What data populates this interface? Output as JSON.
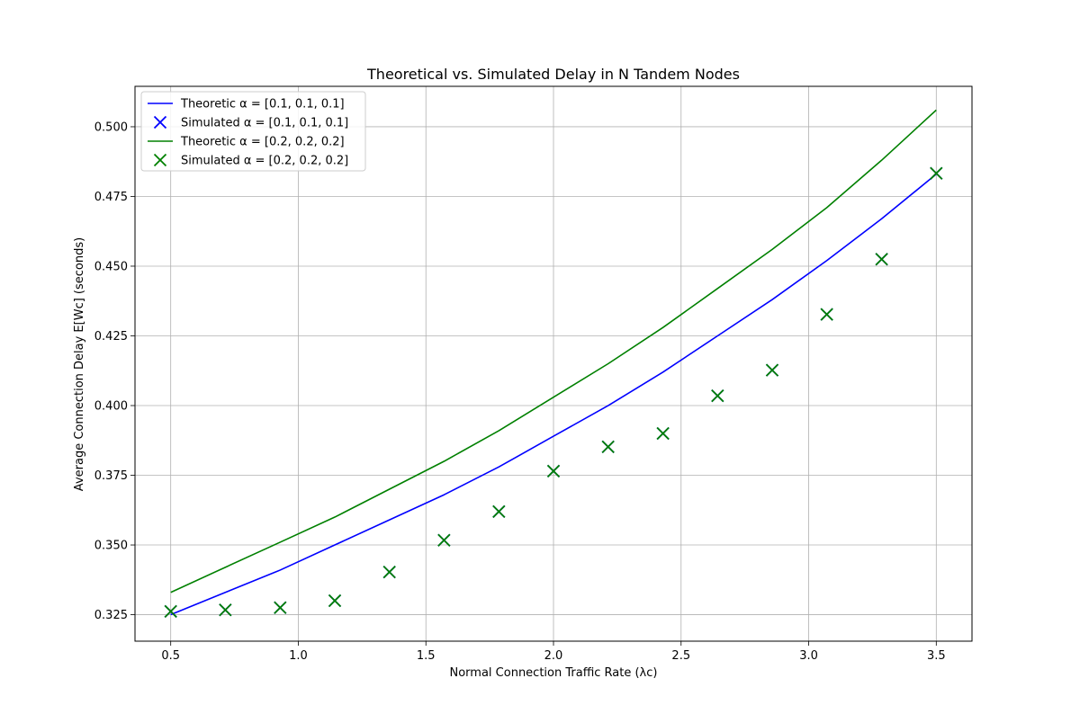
{
  "chart_data": {
    "type": "line",
    "title": "Theoretical vs. Simulated Delay in N Tandem Nodes",
    "xlabel": "Normal Connection Traffic Rate (λc)",
    "ylabel": "Average Connection Delay E[Wc] (seconds)",
    "xlim": [
      0.36,
      3.64
    ],
    "ylim": [
      0.3155,
      0.5145
    ],
    "xticks": [
      0.5,
      1.0,
      1.5,
      2.0,
      2.5,
      3.0,
      3.5
    ],
    "xtick_labels": [
      "0.5",
      "1.0",
      "1.5",
      "2.0",
      "2.5",
      "3.0",
      "3.5"
    ],
    "yticks": [
      0.325,
      0.35,
      0.375,
      0.4,
      0.425,
      0.45,
      0.475,
      0.5
    ],
    "ytick_labels": [
      "0.325",
      "0.350",
      "0.375",
      "0.400",
      "0.425",
      "0.450",
      "0.475",
      "0.500"
    ],
    "grid": true,
    "legend_position": "upper-left",
    "series": [
      {
        "name": "Theoretic α = [0.1, 0.1, 0.1]",
        "kind": "line",
        "color": "#0000ff",
        "x": [
          0.5,
          0.714,
          0.929,
          1.143,
          1.357,
          1.571,
          1.786,
          2.0,
          2.214,
          2.429,
          2.643,
          2.857,
          3.071,
          3.286,
          3.5
        ],
        "y": [
          0.325,
          0.333,
          0.341,
          0.35,
          0.359,
          0.368,
          0.378,
          0.389,
          0.4,
          0.412,
          0.425,
          0.438,
          0.452,
          0.467,
          0.483
        ]
      },
      {
        "name": "Simulated α = [0.1, 0.1, 0.1]",
        "kind": "scatter",
        "marker": "x",
        "color": "#0000ff",
        "x": [
          0.5,
          0.714,
          0.929,
          1.143,
          1.357,
          1.571,
          1.786,
          2.0,
          2.214,
          2.429,
          2.643,
          2.857,
          3.071,
          3.286,
          3.5
        ],
        "y": [
          0.3262,
          0.3267,
          0.3275,
          0.33,
          0.3403,
          0.3517,
          0.362,
          0.3765,
          0.3852,
          0.39,
          0.4035,
          0.4127,
          0.4327,
          0.4525,
          0.4833
        ]
      },
      {
        "name": "Theoretic α = [0.2, 0.2, 0.2]",
        "kind": "line",
        "color": "#008000",
        "x": [
          0.5,
          0.714,
          0.929,
          1.143,
          1.357,
          1.571,
          1.786,
          2.0,
          2.214,
          2.429,
          2.643,
          2.857,
          3.071,
          3.286,
          3.5
        ],
        "y": [
          0.333,
          0.342,
          0.351,
          0.36,
          0.37,
          0.38,
          0.391,
          0.403,
          0.415,
          0.428,
          0.442,
          0.456,
          0.471,
          0.488,
          0.506
        ]
      },
      {
        "name": "Simulated α = [0.2, 0.2, 0.2]",
        "kind": "scatter",
        "marker": "x",
        "color": "#008000",
        "x": [
          0.5,
          0.714,
          0.929,
          1.143,
          1.357,
          1.571,
          1.786,
          2.0,
          2.214,
          2.429,
          2.643,
          2.857,
          3.071,
          3.286,
          3.5
        ],
        "y": [
          0.3262,
          0.3267,
          0.3275,
          0.33,
          0.3403,
          0.3517,
          0.362,
          0.3765,
          0.3852,
          0.39,
          0.4035,
          0.4127,
          0.4327,
          0.4525,
          0.4833
        ]
      }
    ]
  }
}
